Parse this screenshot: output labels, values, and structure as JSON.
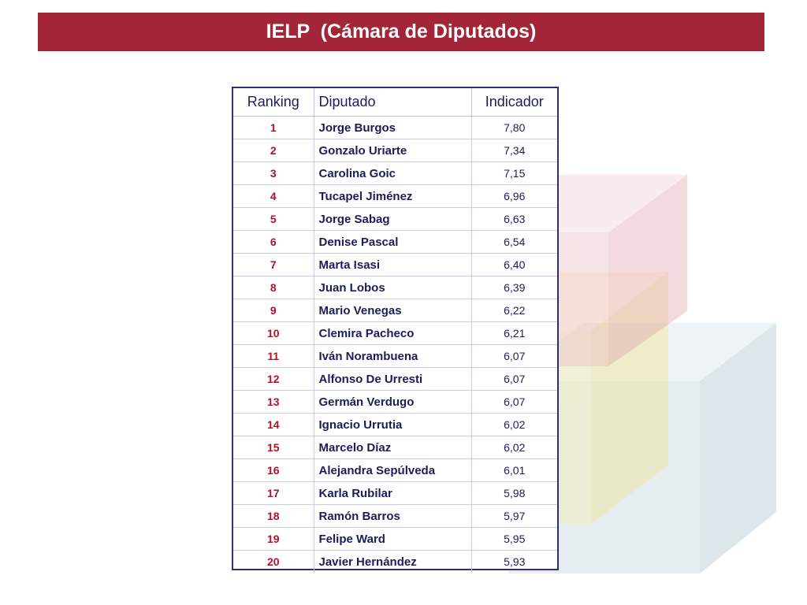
{
  "header": {
    "title": "IELP  (Cámara de Diputados)"
  },
  "colors": {
    "title_bar": "#a32638",
    "table_border": "#2d2d7a",
    "rank_text": "#b0102a",
    "name_text": "#1c1c5a"
  },
  "table": {
    "headers": {
      "ranking": "Ranking",
      "diputado": "Diputado",
      "indicador": "Indicador"
    },
    "rows": [
      {
        "rank": "1",
        "name": "Jorge Burgos",
        "value": "7,80"
      },
      {
        "rank": "2",
        "name": "Gonzalo Uriarte",
        "value": "7,34"
      },
      {
        "rank": "3",
        "name": "Carolina Goic",
        "value": "7,15"
      },
      {
        "rank": "4",
        "name": "Tucapel Jiménez",
        "value": "6,96"
      },
      {
        "rank": "5",
        "name": "Jorge Sabag",
        "value": "6,63"
      },
      {
        "rank": "6",
        "name": "Denise Pascal",
        "value": "6,54"
      },
      {
        "rank": "7",
        "name": "Marta Isasi",
        "value": "6,40"
      },
      {
        "rank": "8",
        "name": "Juan Lobos",
        "value": "6,39"
      },
      {
        "rank": "9",
        "name": "Mario Venegas",
        "value": "6,22"
      },
      {
        "rank": "10",
        "name": "Clemira Pacheco",
        "value": "6,21"
      },
      {
        "rank": "11",
        "name": "Iván Norambuena",
        "value": "6,07"
      },
      {
        "rank": "12",
        "name": "Alfonso De Urresti",
        "value": "6,07"
      },
      {
        "rank": "13",
        "name": "Germán Verdugo",
        "value": "6,07"
      },
      {
        "rank": "14",
        "name": "Ignacio Urrutia",
        "value": "6,02"
      },
      {
        "rank": "15",
        "name": "Marcelo Díaz",
        "value": "6,02"
      },
      {
        "rank": "16",
        "name": "Alejandra Sepúlveda",
        "value": "6,01"
      },
      {
        "rank": "17",
        "name": "Karla Rubilar",
        "value": "5,98"
      },
      {
        "rank": "18",
        "name": "Ramón Barros",
        "value": "5,97"
      },
      {
        "rank": "19",
        "name": "Felipe Ward",
        "value": "5,95"
      },
      {
        "rank": "20",
        "name": "Javier Hernández",
        "value": "5,93"
      }
    ]
  }
}
